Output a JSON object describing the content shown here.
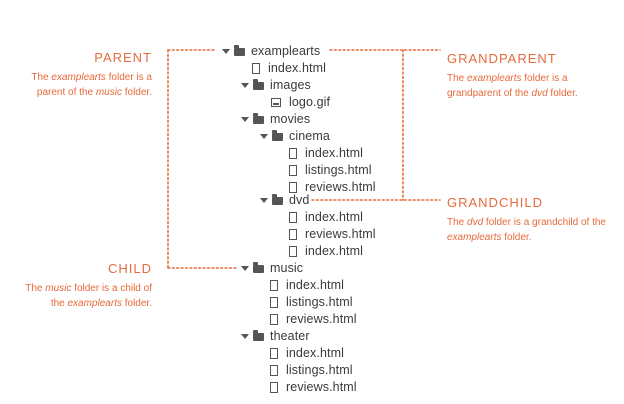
{
  "tree": {
    "examplearts": "examplearts",
    "index": "index.html",
    "images": "images",
    "logo": "logo.gif",
    "movies": "movies",
    "cinema": "cinema",
    "cinema_files": [
      "index.html",
      "listings.html",
      "reviews.html"
    ],
    "dvd": "dvd",
    "dvd_files": [
      "index.html",
      "reviews.html",
      "index.html"
    ],
    "music": "music",
    "music_files": [
      "index.html",
      "listings.html",
      "reviews.html"
    ],
    "theater": "theater",
    "theater_files": [
      "index.html",
      "listings.html",
      "reviews.html"
    ]
  },
  "notes": {
    "parent": {
      "title": "PARENT",
      "pre": "The ",
      "em1": "examplearts",
      "mid": " folder is a parent of the ",
      "em2": "music",
      "post": " folder."
    },
    "grandparent": {
      "title": "GRANDPARENT",
      "pre": "The ",
      "em1": "examplearts",
      "mid": " folder is a grandparent of the ",
      "em2": "dvd",
      "post": " folder."
    },
    "grandchild": {
      "title": "GRANDCHILD",
      "pre": "The ",
      "em1": "dvd",
      "mid": " folder is a grandchild of the ",
      "em2": "examplearts",
      "post": " folder."
    },
    "child": {
      "title": "CHILD",
      "pre": "The ",
      "em1": "music",
      "mid": " folder is a child of the ",
      "em2": "examplearts",
      "post": " folder."
    }
  }
}
